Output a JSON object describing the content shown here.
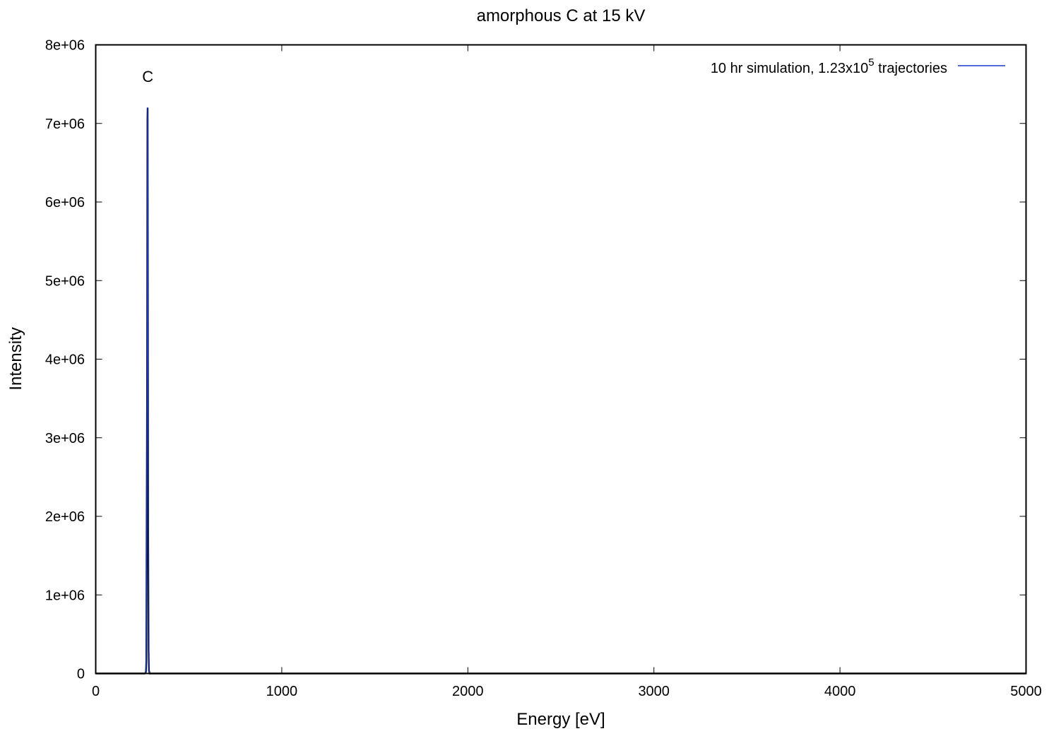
{
  "chart_data": {
    "type": "line",
    "title": "amorphous C at 15 kV",
    "xlabel": "Energy [eV]",
    "ylabel": "Intensity",
    "xlim": [
      0,
      5000
    ],
    "ylim": [
      0,
      8000000
    ],
    "x_ticks": [
      "0",
      "1000",
      "2000",
      "3000",
      "4000",
      "5000"
    ],
    "y_ticks": [
      "0",
      "1e+06",
      "2e+06",
      "3e+06",
      "4e+06",
      "5e+06",
      "6e+06",
      "7e+06",
      "8e+06"
    ],
    "grid": false,
    "legend_position": "top-right",
    "series": [
      {
        "name": "10 hr simulation, 1.23x10^5 trajectories",
        "color": "#1a3ac8",
        "x": [
          0,
          265,
          270,
          272,
          274,
          276,
          277,
          278,
          279,
          280,
          281,
          282,
          284,
          286,
          290,
          300,
          1000,
          2000,
          3000,
          4000,
          5000
        ],
        "y": [
          0,
          0,
          20000,
          150000,
          1850000,
          3600000,
          5300000,
          7050000,
          7200000,
          5300000,
          3600000,
          1850000,
          300000,
          40000,
          0,
          0,
          0,
          0,
          0,
          0,
          0
        ]
      }
    ],
    "annotations": [
      {
        "text": "C",
        "x": 280,
        "y": 7600000
      }
    ],
    "legend": {
      "label_main": "10 hr simulation, 1.23x10",
      "label_sup": "5",
      "label_tail": " trajectories"
    }
  }
}
